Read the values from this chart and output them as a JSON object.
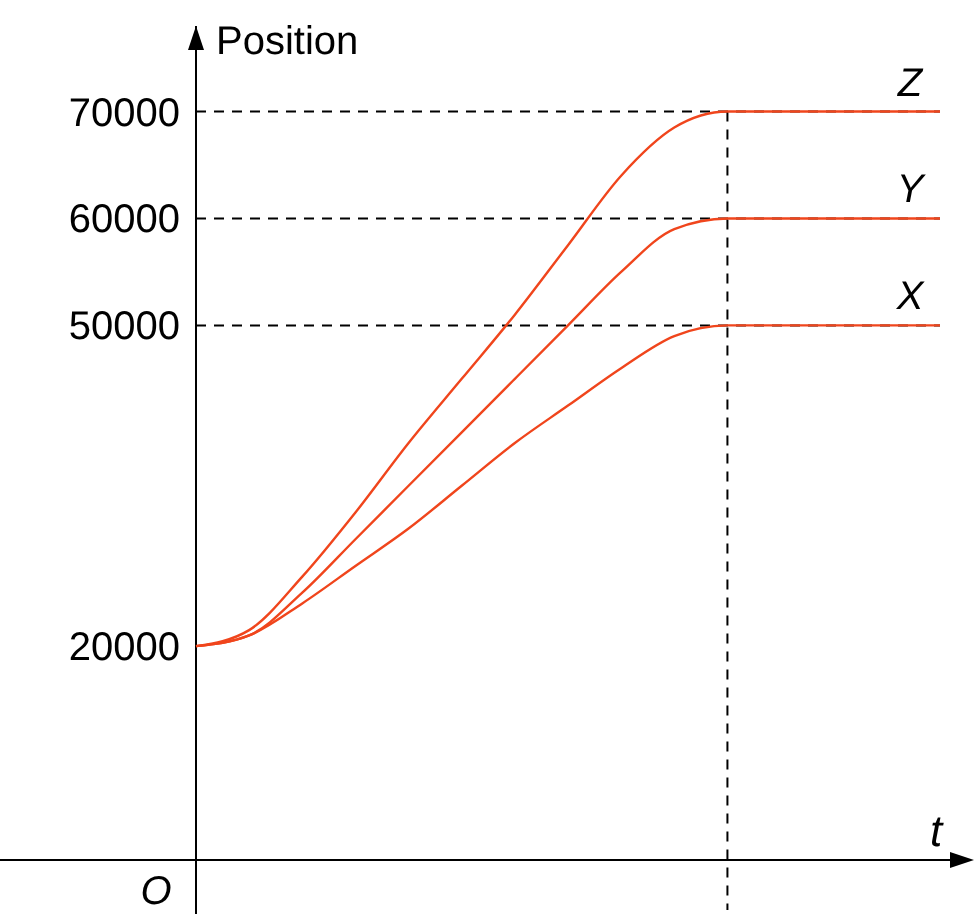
{
  "chart_data": {
    "type": "line",
    "ylabel": "Position",
    "xlabel": "t",
    "categories": [
      null,
      null,
      null,
      null,
      null,
      null,
      null,
      null,
      null,
      null,
      null,
      null,
      null,
      null,
      null
    ],
    "series": [
      {
        "name": "X",
        "color": "#f0451c",
        "values": [
          20000,
          21000,
          24000,
          27500,
          31000,
          35000,
          39000,
          42500,
          46000,
          49000,
          50000,
          50000,
          50000,
          50000,
          50000
        ]
      },
      {
        "name": "Y",
        "color": "#f0451c",
        "values": [
          20000,
          21000,
          25000,
          30000,
          35000,
          40000,
          45000,
          50000,
          55000,
          59000,
          60000,
          60000,
          60000,
          60000,
          60000
        ]
      },
      {
        "name": "Z",
        "color": "#f0451c",
        "values": [
          20000,
          21500,
          26500,
          32500,
          39000,
          45000,
          51000,
          57500,
          64000,
          68500,
          70000,
          70000,
          70000,
          70000,
          70000
        ]
      }
    ],
    "ylim": [
      0,
      78000
    ],
    "yticks": [
      20000,
      50000,
      60000,
      70000
    ],
    "tick_labels": "y",
    "grid": false,
    "legend": false,
    "marker": "none",
    "line_style": "solid",
    "ref_lines": [
      {
        "axis": "y",
        "value": 50000,
        "line_style": "dashed",
        "color": "#000000"
      },
      {
        "axis": "y",
        "value": 60000,
        "line_style": "dashed",
        "color": "#000000"
      },
      {
        "axis": "y",
        "value": 70000,
        "line_style": "dashed",
        "color": "#000000"
      }
    ],
    "annotations": [
      "O"
    ]
  }
}
